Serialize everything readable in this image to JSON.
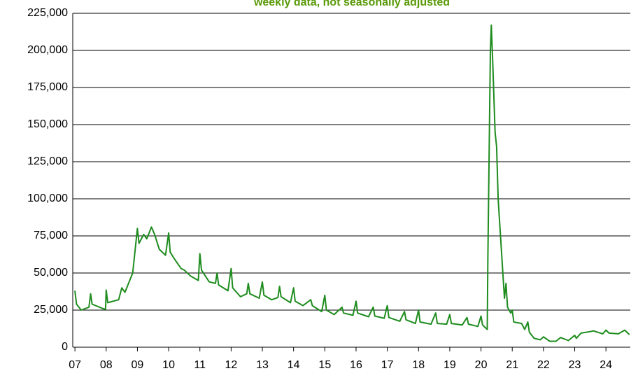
{
  "chart_data": {
    "type": "line",
    "title": "weekly data, not seasonally adjusted",
    "x": [
      2007.0,
      2007.05,
      2007.2,
      2007.45,
      2007.5,
      2007.55,
      2007.9,
      2007.98,
      2008.0,
      2008.05,
      2008.4,
      2008.5,
      2008.6,
      2008.85,
      2009.0,
      2009.05,
      2009.2,
      2009.3,
      2009.45,
      2009.55,
      2009.7,
      2009.9,
      2010.0,
      2010.05,
      2010.2,
      2010.4,
      2010.5,
      2010.7,
      2010.95,
      2011.0,
      2011.05,
      2011.3,
      2011.5,
      2011.55,
      2011.6,
      2011.9,
      2012.0,
      2012.05,
      2012.3,
      2012.5,
      2012.55,
      2012.6,
      2012.9,
      2013.0,
      2013.05,
      2013.3,
      2013.5,
      2013.55,
      2013.6,
      2013.9,
      2014.0,
      2014.05,
      2014.3,
      2014.55,
      2014.6,
      2014.9,
      2015.0,
      2015.05,
      2015.3,
      2015.55,
      2015.6,
      2015.9,
      2016.0,
      2016.05,
      2016.4,
      2016.55,
      2016.6,
      2016.9,
      2017.0,
      2017.05,
      2017.4,
      2017.55,
      2017.6,
      2017.9,
      2018.0,
      2018.05,
      2018.4,
      2018.55,
      2018.6,
      2018.9,
      2019.0,
      2019.05,
      2019.4,
      2019.55,
      2019.6,
      2019.9,
      2020.0,
      2020.05,
      2020.2,
      2020.22,
      2020.3,
      2020.33,
      2020.38,
      2020.45,
      2020.5,
      2020.55,
      2020.7,
      2020.75,
      2020.8,
      2020.85,
      2020.95,
      2021.0,
      2021.05,
      2021.3,
      2021.4,
      2021.5,
      2021.55,
      2021.7,
      2021.9,
      2022.0,
      2022.2,
      2022.4,
      2022.55,
      2022.8,
      2023.0,
      2023.05,
      2023.2,
      2023.5,
      2023.6,
      2023.9,
      2024.0,
      2024.1,
      2024.4,
      2024.6,
      2024.75
    ],
    "series": [
      {
        "color": "#1e8c1e",
        "values": [
          38000,
          29000,
          25000,
          27000,
          36000,
          29000,
          26000,
          25500,
          38500,
          30000,
          32000,
          40000,
          37000,
          50000,
          80000,
          70000,
          76000,
          73000,
          81000,
          76000,
          66000,
          62000,
          77000,
          64000,
          59000,
          53000,
          52000,
          48000,
          45000,
          63000,
          52000,
          44000,
          43000,
          50000,
          42000,
          38000,
          53000,
          40000,
          34000,
          36000,
          43000,
          36000,
          33000,
          44000,
          35000,
          32000,
          33500,
          41000,
          34000,
          30000,
          40000,
          31000,
          28000,
          32000,
          28000,
          24000,
          35000,
          25000,
          22000,
          27000,
          23000,
          21500,
          31000,
          23000,
          20500,
          27000,
          21000,
          19500,
          28000,
          20000,
          17500,
          24000,
          18500,
          16000,
          25000,
          17000,
          15500,
          23000,
          16000,
          15500,
          22000,
          16000,
          15000,
          20000,
          15500,
          14000,
          21000,
          15000,
          12000,
          60000,
          200000,
          217000,
          190000,
          145000,
          135000,
          100000,
          50000,
          33000,
          43000,
          27000,
          23000,
          25000,
          17000,
          16000,
          12000,
          17000,
          10000,
          6000,
          5000,
          7000,
          4000,
          4000,
          6500,
          4500,
          8000,
          6000,
          9500,
          10500,
          11000,
          9000,
          11500,
          9500,
          9000,
          11500,
          8500
        ]
      }
    ],
    "xlim": [
      2006.93,
      2024.78
    ],
    "xticks": [
      {
        "value": 2007,
        "label": "07"
      },
      {
        "value": 2008,
        "label": "08"
      },
      {
        "value": 2009,
        "label": "09"
      },
      {
        "value": 2010,
        "label": "10"
      },
      {
        "value": 2011,
        "label": "11"
      },
      {
        "value": 2012,
        "label": "12"
      },
      {
        "value": 2013,
        "label": "13"
      },
      {
        "value": 2014,
        "label": "14"
      },
      {
        "value": 2015,
        "label": "15"
      },
      {
        "value": 2016,
        "label": "16"
      },
      {
        "value": 2017,
        "label": "17"
      },
      {
        "value": 2018,
        "label": "18"
      },
      {
        "value": 2019,
        "label": "19"
      },
      {
        "value": 2020,
        "label": "20"
      },
      {
        "value": 2021,
        "label": "21"
      },
      {
        "value": 2022,
        "label": "22"
      },
      {
        "value": 2023,
        "label": "23"
      },
      {
        "value": 2024,
        "label": "24"
      }
    ],
    "ylim": [
      0,
      225000
    ],
    "yticks": [
      0,
      {
        "value": 25000,
        "label": "25,000"
      },
      {
        "value": 50000,
        "label": "50,000"
      },
      {
        "value": 75000,
        "label": "75,000"
      },
      {
        "value": 100000,
        "label": "100,000"
      },
      {
        "value": 125000,
        "label": "125,000"
      },
      {
        "value": 150000,
        "label": "150,000"
      },
      {
        "value": 175000,
        "label": "175,000"
      },
      {
        "value": 200000,
        "label": "200,000"
      },
      {
        "value": 225000,
        "label": "225,000"
      }
    ],
    "grid": true
  }
}
